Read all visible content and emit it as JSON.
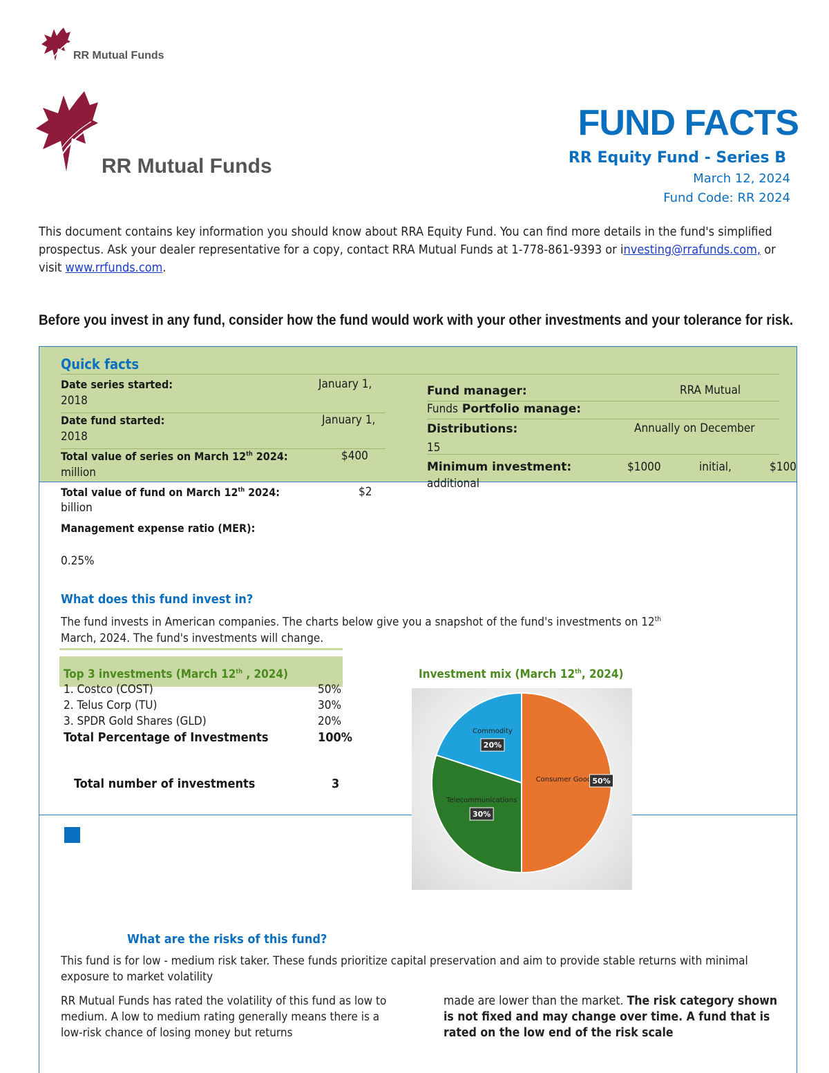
{
  "header": {
    "brand_small": "RR Mutual Funds",
    "brand_large": "RR Mutual Funds",
    "title": "FUND FACTS",
    "fund_name": "RR Equity Fund - Series B",
    "date": "March 12, 2024",
    "fund_code": "Fund Code:  RR 2024"
  },
  "intro": {
    "text_1": "This document contains key information you should know about RRA Equity Fund. You can find more details in the fund's simplified prospectus. Ask your dealer representative for a copy, contact RRA Mutual Funds at 1-778-861-9393 or i",
    "email": "nvesting@rrafunds.com,",
    "text_2": " or visit ",
    "website": "www.rrfunds.com",
    "text_3": "."
  },
  "before_invest": "Before you invest in any fund, consider how the fund would work with your other investments and your tolerance for risk.",
  "quick_facts": {
    "heading": "Quick  facts",
    "date_series_label": "Date series started:",
    "date_series_value": "January 1,",
    "date_series_value_2": "2018",
    "date_fund_label": "Date fund started:",
    "date_fund_value": "January  1,",
    "date_fund_value_2": "2018",
    "total_series_label": "Total value of series on March 12",
    "total_series_sup": "th",
    "total_series_label_end": " 2024:",
    "total_series_value": "$400",
    "total_series_value_2": "million",
    "total_fund_label": "Total value of fund on March 12",
    "total_fund_sup": "th",
    "total_fund_label_end": " 2024:",
    "total_fund_value": "$2",
    "total_fund_value_2": "billion",
    "mer_label": "Management expense ratio (MER):",
    "mer_value": "0.25%",
    "fund_manager_label": "Fund manager:",
    "fund_manager_value": "RRA Mutual",
    "fund_manager_value_2": "Funds",
    "portfolio_label": " Portfolio manage:",
    "distributions_label": "Distributions:",
    "distributions_value": "Annually on December",
    "distributions_value_2": "15",
    "min_label": "Minimum investment:",
    "min_value_1": "$1000",
    "min_value_2": "initial,",
    "min_value_3": "$100",
    "min_value_4": "additional"
  },
  "invest_in": {
    "heading": "What does this fund invest in?",
    "text_1": "The fund invests in American companies. The charts below give you a snapshot of the fund's investments on 12",
    "text_sup": "th",
    "text_2": "March, 2024. The fund's investments will change."
  },
  "top3": {
    "heading_1": "Top 3 investments (March 12",
    "heading_sup": "th",
    "heading_2": " , 2024)",
    "items": [
      {
        "name": "1.   Costco (COST)",
        "pct": "50%"
      },
      {
        "name": "2.  Telus Corp (TU)",
        "pct": "30%"
      },
      {
        "name": "3. SPDR Gold Shares (GLD)",
        "pct": "20%"
      }
    ],
    "total_label": "Total Percentage of Investments",
    "total_value": "100%",
    "count_label": "Total number of investments",
    "count_value": "3"
  },
  "mix": {
    "heading_1": "Investment mix (March 12",
    "heading_sup": "th",
    "heading_2": ", 2024)"
  },
  "chart_data": {
    "type": "pie",
    "categories": [
      "Consumer Goods",
      "Telecommunications",
      "Commodity"
    ],
    "values": [
      50,
      30,
      20
    ],
    "data_labels": [
      "50%",
      "30%",
      "20%"
    ],
    "colors": [
      "#e8742e",
      "#2a7a2a",
      "#1fa1dc"
    ]
  },
  "risks": {
    "heading": "What are the risks of this fund?",
    "text_1": "This fund is for low - medium risk taker. These funds prioritize capital preservation and aim to provide stable returns with minimal exposure to market volatility",
    "col1": "RR Mutual Funds has rated the volatility of this fund as low to medium. A low to medium rating generally means there is a low-risk chance of losing money but returns",
    "col2_plain": "made are lower than the market. ",
    "col2_bold": "The risk category shown is not fixed and may change over time.  A fund that is rated on the low end of the risk scale"
  },
  "colors": {
    "accent": "#0a6fbf",
    "quick_facts_bg": "#c9d9a3",
    "logo": "#8e1b3b",
    "rule": "#2c7fc2"
  }
}
